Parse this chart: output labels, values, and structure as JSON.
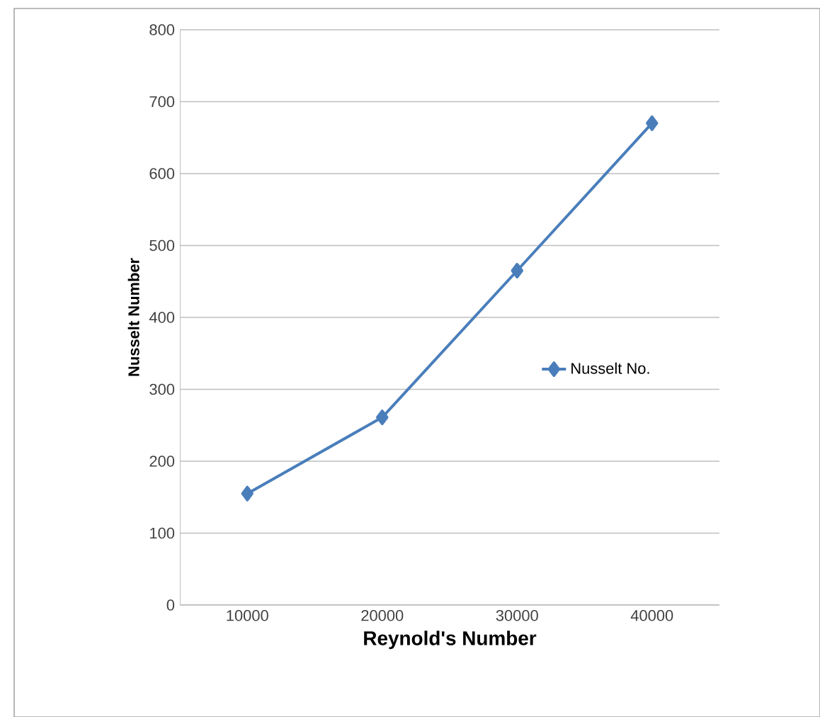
{
  "chart_data": {
    "type": "line",
    "xlabel": "Reynold's Number",
    "ylabel": "Nusselt Number",
    "categories": [
      "10000",
      "20000",
      "30000",
      "40000"
    ],
    "series": [
      {
        "name": "Nusselt  No.",
        "color": "#4a7ebb",
        "values": [
          155,
          261,
          465,
          670
        ]
      }
    ],
    "ylim": [
      0,
      800
    ],
    "yticks": [
      0,
      100,
      200,
      300,
      400,
      500,
      600,
      700,
      800
    ],
    "grid": "y",
    "legend": "right",
    "marker": "diamond",
    "line_style": "solid"
  }
}
